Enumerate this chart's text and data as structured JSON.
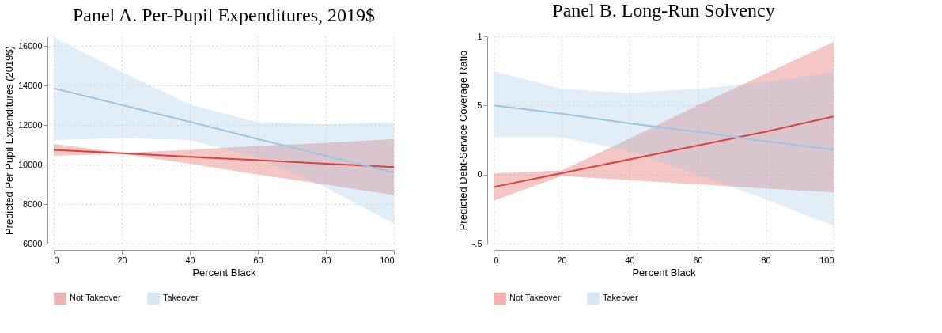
{
  "chart_data": [
    {
      "type": "line",
      "title": "Panel A. Per-Pupil Expenditures, 2019$",
      "xlabel": "Percent Black",
      "ylabel": "Predicted Per Pupil Expenditures (2019$)",
      "x": [
        0,
        20,
        40,
        60,
        80,
        100
      ],
      "xlim": [
        0,
        100
      ],
      "xticks": [
        0,
        20,
        40,
        60,
        80,
        100
      ],
      "ylim": [
        6000,
        16500
      ],
      "yticks": [
        6000,
        8000,
        10000,
        12000,
        14000,
        16000
      ],
      "grid": true,
      "legend": "bottom",
      "series": [
        {
          "name": "Not Takeover",
          "color": "#d9413a",
          "values": [
            10750,
            10580,
            10400,
            10230,
            10050,
            9880
          ],
          "lower": [
            10450,
            10550,
            10050,
            9500,
            9000,
            8450
          ],
          "upper": [
            11050,
            10600,
            10750,
            10950,
            11100,
            11300
          ]
        },
        {
          "name": "Takeover",
          "color": "#9cc4e4",
          "values": [
            13870,
            13020,
            12170,
            11300,
            10450,
            9600
          ],
          "lower": [
            11250,
            11350,
            11250,
            10350,
            8850,
            7000
          ],
          "upper": [
            16450,
            14700,
            13050,
            12150,
            12050,
            12150
          ]
        }
      ]
    },
    {
      "type": "line",
      "title": "Panel B. Long-Run Solvency",
      "xlabel": "Percent Black",
      "ylabel": "Predicted Debt-Service Coverage Ratio",
      "x": [
        0,
        20,
        40,
        60,
        80,
        100
      ],
      "xlim": [
        0,
        100
      ],
      "xticks": [
        0,
        20,
        40,
        60,
        80,
        100
      ],
      "ylim": [
        -0.5,
        1
      ],
      "yticks": [
        {
          "value": -0.5,
          "label": "-.5"
        },
        0,
        {
          "value": 0.5,
          "label": ".5"
        },
        1
      ],
      "grid": true,
      "legend": "bottom",
      "series": [
        {
          "name": "Not Takeover",
          "color": "#d9413a",
          "values": [
            -0.09,
            0.01,
            0.11,
            0.21,
            0.31,
            0.42
          ],
          "lower": [
            -0.19,
            -0.01,
            -0.04,
            -0.07,
            -0.1,
            -0.13
          ],
          "upper": [
            0.01,
            0.03,
            0.26,
            0.5,
            0.73,
            0.96
          ]
        },
        {
          "name": "Takeover",
          "color": "#9cc4e4",
          "values": [
            0.5,
            0.44,
            0.37,
            0.31,
            0.24,
            0.18
          ],
          "lower": [
            0.27,
            0.27,
            0.17,
            0,
            -0.18,
            -0.37
          ],
          "upper": [
            0.75,
            0.62,
            0.59,
            0.62,
            0.67,
            0.74
          ]
        }
      ]
    }
  ]
}
